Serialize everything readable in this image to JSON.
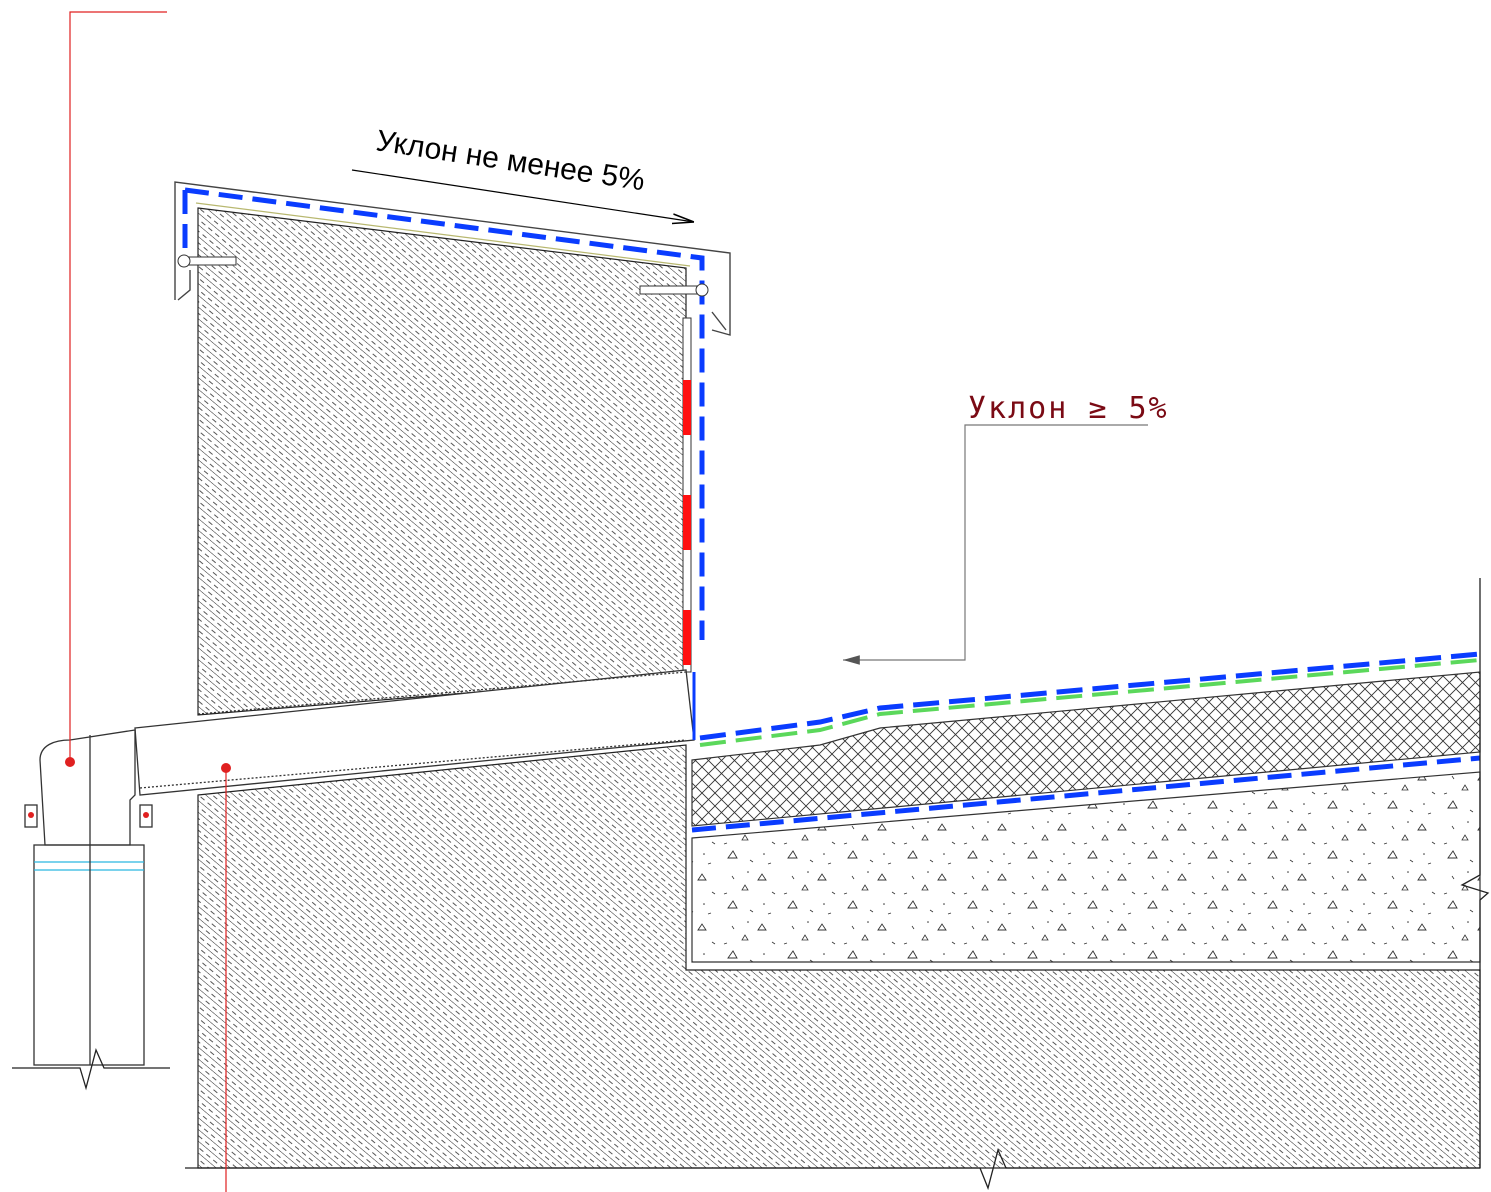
{
  "annotations": {
    "slope_main": "Уклон не менее 5%",
    "slope_callout": "Уклон ≥ 5%"
  },
  "colors": {
    "membrane_blue": "#0a3cff",
    "membrane_red": "#ff1010",
    "membrane_green": "#5bd85b",
    "leader_red": "#e02020",
    "callout_text": "#7a0a14",
    "hatch": "#222222"
  }
}
